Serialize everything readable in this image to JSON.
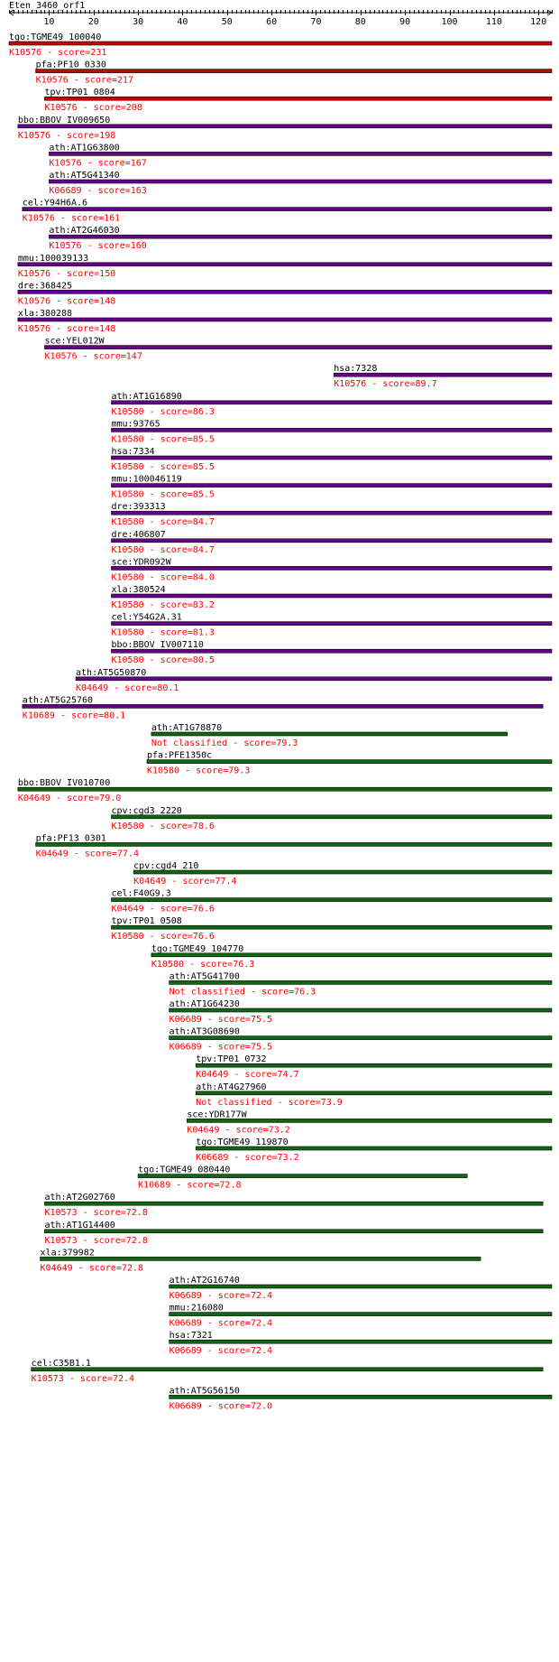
{
  "title": "Eten_3460_orf1",
  "axis": {
    "min": 1,
    "max": 123,
    "ticks": [
      10,
      20,
      30,
      40,
      50,
      60,
      70,
      80,
      90,
      100,
      110,
      120
    ]
  },
  "colors": {
    "red": "#cc0000",
    "purple": "#66008b",
    "green": "#116611",
    "label_text": "#000000",
    "score_text": "#ff0000",
    "axis": "#000000"
  },
  "hits": [
    {
      "name": "tgo:TGME49_100040",
      "ko": "K10576",
      "score": "231",
      "start": 1,
      "end": 123,
      "color": "red"
    },
    {
      "name": "pfa:PF10_0330",
      "ko": "K10576",
      "score": "217",
      "start": 7,
      "end": 123,
      "color": "red"
    },
    {
      "name": "tpv:TP01_0804",
      "ko": "K10576",
      "score": "208",
      "start": 9,
      "end": 123,
      "color": "red"
    },
    {
      "name": "bbo:BBOV_IV009650",
      "ko": "K10576",
      "score": "198",
      "start": 3,
      "end": 123,
      "color": "purple"
    },
    {
      "name": "ath:AT1G63800",
      "ko": "K10576",
      "score": "167",
      "start": 10,
      "end": 123,
      "color": "purple"
    },
    {
      "name": "ath:AT5G41340",
      "ko": "K06689",
      "score": "163",
      "start": 10,
      "end": 123,
      "color": "purple"
    },
    {
      "name": "cel:Y94H6A.6",
      "ko": "K10576",
      "score": "161",
      "start": 4,
      "end": 123,
      "color": "purple"
    },
    {
      "name": "ath:AT2G46030",
      "ko": "K10576",
      "score": "160",
      "start": 10,
      "end": 123,
      "color": "purple"
    },
    {
      "name": "mmu:100039133",
      "ko": "K10576",
      "score": "150",
      "start": 3,
      "end": 123,
      "color": "purple"
    },
    {
      "name": "dre:368425",
      "ko": "K10576",
      "score": "148",
      "start": 3,
      "end": 123,
      "color": "purple"
    },
    {
      "name": "xla:380288",
      "ko": "K10576",
      "score": "148",
      "start": 3,
      "end": 123,
      "color": "purple"
    },
    {
      "name": "sce:YEL012W",
      "ko": "K10576",
      "score": "147",
      "start": 9,
      "end": 123,
      "color": "purple"
    },
    {
      "name": "hsa:7328",
      "ko": "K10576",
      "score": "89.7",
      "start": 74,
      "end": 123,
      "color": "purple"
    },
    {
      "name": "ath:AT1G16890",
      "ko": "K10580",
      "score": "86.3",
      "start": 24,
      "end": 123,
      "color": "purple"
    },
    {
      "name": "mmu:93765",
      "ko": "K10580",
      "score": "85.5",
      "start": 24,
      "end": 123,
      "color": "purple"
    },
    {
      "name": "hsa:7334",
      "ko": "K10580",
      "score": "85.5",
      "start": 24,
      "end": 123,
      "color": "purple"
    },
    {
      "name": "mmu:100046119",
      "ko": "K10580",
      "score": "85.5",
      "start": 24,
      "end": 123,
      "color": "purple"
    },
    {
      "name": "dre:393313",
      "ko": "K10580",
      "score": "84.7",
      "start": 24,
      "end": 123,
      "color": "purple"
    },
    {
      "name": "dre:406807",
      "ko": "K10580",
      "score": "84.7",
      "start": 24,
      "end": 123,
      "color": "purple"
    },
    {
      "name": "sce:YDR092W",
      "ko": "K10580",
      "score": "84.0",
      "start": 24,
      "end": 123,
      "color": "purple"
    },
    {
      "name": "xla:380524",
      "ko": "K10580",
      "score": "83.2",
      "start": 24,
      "end": 123,
      "color": "purple"
    },
    {
      "name": "cel:Y54G2A.31",
      "ko": "K10580",
      "score": "81.3",
      "start": 24,
      "end": 123,
      "color": "purple"
    },
    {
      "name": "bbo:BBOV_IV007110",
      "ko": "K10580",
      "score": "80.5",
      "start": 24,
      "end": 123,
      "color": "purple"
    },
    {
      "name": "ath:AT5G50870",
      "ko": "K04649",
      "score": "80.1",
      "start": 16,
      "end": 123,
      "color": "purple"
    },
    {
      "name": "ath:AT5G25760",
      "ko": "K10689",
      "score": "80.1",
      "start": 4,
      "end": 121,
      "color": "purple"
    },
    {
      "name": "ath:AT1G78870",
      "ko": "Not classified",
      "score": "79.3",
      "start": 33,
      "end": 113,
      "color": "green"
    },
    {
      "name": "pfa:PFE1350c",
      "ko": "K10580",
      "score": "79.3",
      "start": 32,
      "end": 123,
      "color": "green"
    },
    {
      "name": "bbo:BBOV_IV010700",
      "ko": "K04649",
      "score": "79.0",
      "start": 3,
      "end": 123,
      "color": "green"
    },
    {
      "name": "cpv:cgd3_2220",
      "ko": "K10580",
      "score": "78.6",
      "start": 24,
      "end": 123,
      "color": "green"
    },
    {
      "name": "pfa:PF13_0301",
      "ko": "K04649",
      "score": "77.4",
      "start": 7,
      "end": 123,
      "color": "green"
    },
    {
      "name": "cpv:cgd4_210",
      "ko": "K04649",
      "score": "77.4",
      "start": 29,
      "end": 123,
      "color": "green"
    },
    {
      "name": "cel:F40G9.3",
      "ko": "K04649",
      "score": "76.6",
      "start": 24,
      "end": 123,
      "color": "green"
    },
    {
      "name": "tpv:TP01_0508",
      "ko": "K10580",
      "score": "76.6",
      "start": 24,
      "end": 123,
      "color": "green"
    },
    {
      "name": "tgo:TGME49_104770",
      "ko": "K10580",
      "score": "76.3",
      "start": 33,
      "end": 123,
      "color": "green"
    },
    {
      "name": "ath:AT5G41700",
      "ko": "Not classified",
      "score": "76.3",
      "start": 37,
      "end": 123,
      "color": "green"
    },
    {
      "name": "ath:AT1G64230",
      "ko": "K06689",
      "score": "75.5",
      "start": 37,
      "end": 123,
      "color": "green"
    },
    {
      "name": "ath:AT3G08690",
      "ko": "K06689",
      "score": "75.5",
      "start": 37,
      "end": 123,
      "color": "green"
    },
    {
      "name": "tpv:TP01_0732",
      "ko": "K04649",
      "score": "74.7",
      "start": 43,
      "end": 123,
      "color": "green"
    },
    {
      "name": "ath:AT4G27960",
      "ko": "Not classified",
      "score": "73.9",
      "start": 43,
      "end": 123,
      "color": "green"
    },
    {
      "name": "sce:YDR177W",
      "ko": "K04649",
      "score": "73.2",
      "start": 41,
      "end": 123,
      "color": "green"
    },
    {
      "name": "tgo:TGME49_119870",
      "ko": "K06689",
      "score": "73.2",
      "start": 43,
      "end": 123,
      "color": "green"
    },
    {
      "name": "tgo:TGME49_080440",
      "ko": "K10689",
      "score": "72.8",
      "start": 30,
      "end": 104,
      "color": "green"
    },
    {
      "name": "ath:AT2G02760",
      "ko": "K10573",
      "score": "72.8",
      "start": 9,
      "end": 121,
      "color": "green"
    },
    {
      "name": "ath:AT1G14400",
      "ko": "K10573",
      "score": "72.8",
      "start": 9,
      "end": 121,
      "color": "green"
    },
    {
      "name": "xla:379982",
      "ko": "K04649",
      "score": "72.8",
      "start": 8,
      "end": 107,
      "color": "green"
    },
    {
      "name": "ath:AT2G16740",
      "ko": "K06689",
      "score": "72.4",
      "start": 37,
      "end": 123,
      "color": "green"
    },
    {
      "name": "mmu:216080",
      "ko": "K06689",
      "score": "72.4",
      "start": 37,
      "end": 123,
      "color": "green"
    },
    {
      "name": "hsa:7321",
      "ko": "K06689",
      "score": "72.4",
      "start": 37,
      "end": 123,
      "color": "green"
    },
    {
      "name": "cel:C35B1.1",
      "ko": "K10573",
      "score": "72.4",
      "start": 6,
      "end": 121,
      "color": "green"
    },
    {
      "name": "ath:AT5G56150",
      "ko": "K06689",
      "score": "72.0",
      "start": 37,
      "end": 123,
      "color": "green"
    }
  ]
}
